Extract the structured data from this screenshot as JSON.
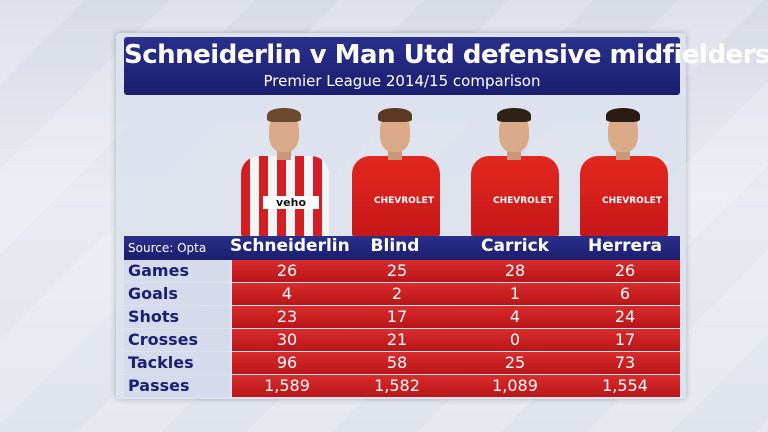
{
  "title": "Schneiderlin v Man Utd defensive midfielders",
  "subtitle": "Premier League 2014/15 comparison",
  "source": "Source: Opta",
  "players": [
    "Schneiderlin",
    "Blind",
    "Carrick",
    "Herrera"
  ],
  "sponsors": [
    "veho",
    "CHEVROLET",
    "CHEVROLET",
    "CHEVROLET"
  ],
  "rows": [
    {
      "label": "Games",
      "values": [
        "26",
        "25",
        "28",
        "26"
      ]
    },
    {
      "label": "Goals",
      "values": [
        "4",
        "2",
        "1",
        "6"
      ]
    },
    {
      "label": "Shots",
      "values": [
        "23",
        "17",
        "4",
        "24"
      ]
    },
    {
      "label": "Crosses",
      "values": [
        "30",
        "21",
        "0",
        "17"
      ]
    },
    {
      "label": "Tackles",
      "values": [
        "96",
        "58",
        "25",
        "73"
      ]
    },
    {
      "label": "Passes",
      "values": [
        "1,589",
        "1,582",
        "1,089",
        "1,554"
      ]
    }
  ],
  "colors": {
    "navy": "#1b1f6f",
    "red": "#c7171a",
    "label_bg": "#d5dbea"
  }
}
